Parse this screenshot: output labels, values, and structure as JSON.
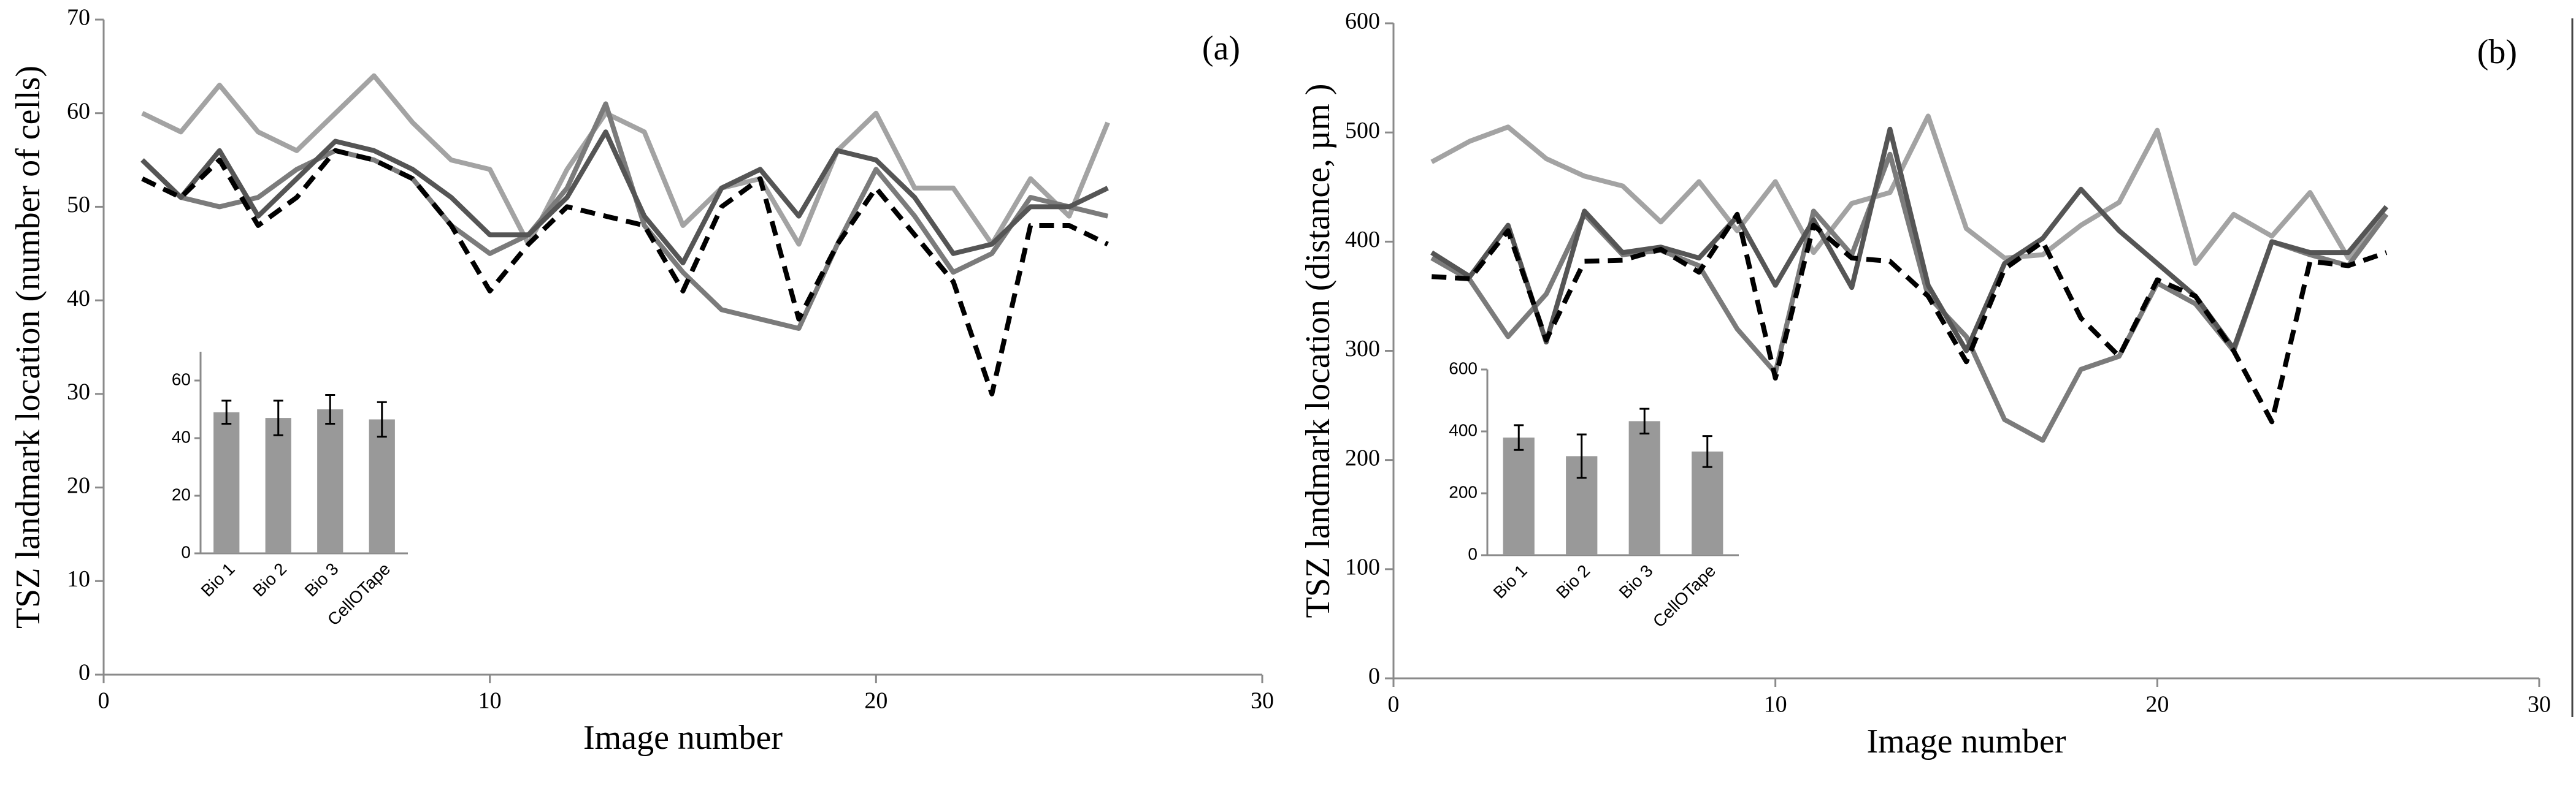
{
  "chart_data": [
    {
      "type": "line",
      "annotation": "(a)",
      "x_label": "Image number",
      "y_label": "TSZ landmark location (number of cells)",
      "x": [
        1,
        2,
        3,
        4,
        5,
        6,
        7,
        8,
        9,
        10,
        11,
        12,
        13,
        14,
        15,
        16,
        17,
        18,
        19,
        20,
        21,
        22,
        23,
        24,
        25,
        26
      ],
      "xlim": [
        0,
        30
      ],
      "xticks": [
        0,
        10,
        20,
        30
      ],
      "ylim": [
        0,
        70
      ],
      "yticks": [
        0,
        10,
        20,
        30,
        40,
        50,
        60,
        70
      ],
      "series": [
        {
          "color": "#a3a3a3",
          "dashed": false,
          "values": [
            60,
            58,
            63,
            58,
            56,
            60,
            64,
            59,
            55,
            54,
            46,
            54,
            60,
            58,
            48,
            52,
            53,
            46,
            56,
            60,
            52,
            52,
            46,
            53,
            49,
            59
          ]
        },
        {
          "color": "#7b7b7b",
          "dashed": false,
          "values": [
            55,
            51,
            50,
            51,
            54,
            56,
            55,
            53,
            48,
            45,
            47,
            52,
            61,
            48,
            43,
            39,
            38,
            37,
            46,
            54,
            49,
            43,
            45,
            51,
            50,
            49
          ]
        },
        {
          "color": "#555555",
          "dashed": false,
          "values": [
            55,
            51,
            56,
            49,
            53,
            57,
            56,
            54,
            51,
            47,
            47,
            51,
            58,
            49,
            44,
            52,
            54,
            49,
            56,
            55,
            51,
            45,
            46,
            50,
            50,
            52
          ]
        },
        {
          "color": "#000000",
          "dashed": true,
          "values": [
            53,
            51,
            55,
            48,
            51,
            56,
            55,
            53,
            48,
            41,
            46,
            50,
            49,
            48,
            41,
            50,
            53,
            38,
            46,
            52,
            47,
            42,
            30,
            48,
            48,
            46
          ]
        }
      ]
    },
    {
      "type": "bar",
      "categories": [
        "Bio 1",
        "Bio 2",
        "Bio 3",
        "CellOTape"
      ],
      "values": [
        49,
        47,
        50,
        46.5
      ],
      "errors": [
        4,
        6,
        5,
        6
      ],
      "color": "#999999",
      "ylim": [
        0,
        70
      ],
      "yticks": [
        0,
        20,
        40,
        60
      ]
    },
    {
      "type": "line",
      "annotation": "(b)",
      "x_label": "Image number",
      "y_label": "TSZ landmark location (distance, µm )",
      "x": [
        1,
        2,
        3,
        4,
        5,
        6,
        7,
        8,
        9,
        10,
        11,
        12,
        13,
        14,
        15,
        16,
        17,
        18,
        19,
        20,
        21,
        22,
        23,
        24,
        25,
        26
      ],
      "xlim": [
        0,
        30
      ],
      "xticks": [
        0,
        10,
        20,
        30
      ],
      "ylim": [
        0,
        600
      ],
      "yticks": [
        0,
        100,
        200,
        300,
        400,
        500,
        600
      ],
      "series": [
        {
          "color": "#a3a3a3",
          "dashed": false,
          "values": [
            473,
            492,
            505,
            476,
            460,
            451,
            418,
            455,
            410,
            455,
            390,
            435,
            445,
            515,
            412,
            385,
            388,
            415,
            436,
            502,
            380,
            425,
            405,
            445,
            385,
            425
          ]
        },
        {
          "color": "#7b7b7b",
          "dashed": false,
          "values": [
            385,
            365,
            313,
            352,
            425,
            388,
            392,
            378,
            320,
            280,
            428,
            388,
            480,
            350,
            313,
            237,
            218,
            283,
            295,
            362,
            343,
            300,
            400,
            388,
            378,
            425
          ]
        },
        {
          "color": "#555555",
          "dashed": false,
          "values": [
            390,
            368,
            415,
            308,
            428,
            390,
            395,
            385,
            423,
            360,
            420,
            358,
            503,
            360,
            300,
            380,
            403,
            448,
            410,
            380,
            350,
            302,
            400,
            390,
            390,
            432
          ]
        },
        {
          "color": "#000000",
          "dashed": true,
          "values": [
            368,
            366,
            410,
            310,
            382,
            383,
            393,
            372,
            425,
            275,
            415,
            385,
            382,
            350,
            290,
            375,
            400,
            330,
            295,
            365,
            350,
            300,
            235,
            382,
            378,
            390
          ]
        }
      ]
    },
    {
      "type": "bar",
      "categories": [
        "Bio 1",
        "Bio 2",
        "Bio 3",
        "CellOTape"
      ],
      "values": [
        380,
        320,
        433,
        335
      ],
      "errors": [
        40,
        70,
        40,
        50
      ],
      "color": "#999999",
      "ylim": [
        0,
        600
      ],
      "yticks": [
        0,
        200,
        400,
        600
      ]
    }
  ]
}
